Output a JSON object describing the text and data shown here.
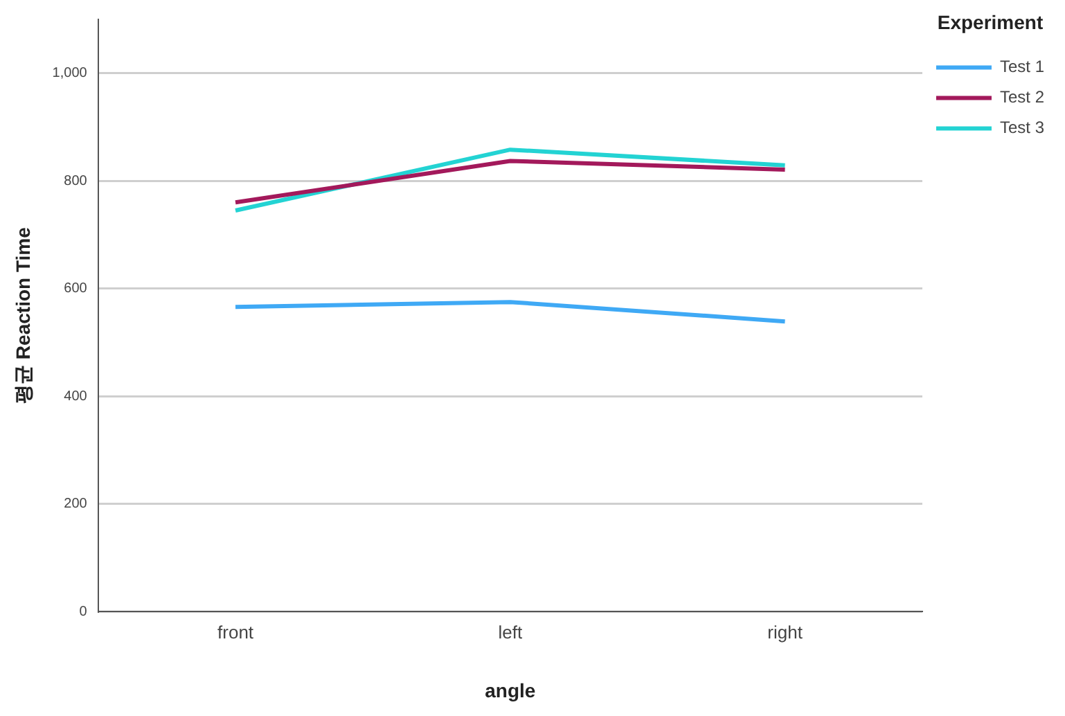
{
  "chart_data": {
    "type": "line",
    "xlabel": "angle",
    "ylabel": "평균 Reaction Time",
    "legend_title": "Experiment",
    "categories": [
      "front",
      "left",
      "right"
    ],
    "series": [
      {
        "name": "Test 1",
        "color": "#3fa9f5",
        "values": [
          566,
          575,
          539
        ]
      },
      {
        "name": "Test 2",
        "color": "#a3195b",
        "values": [
          760,
          837,
          821
        ]
      },
      {
        "name": "Test 3",
        "color": "#23d3d3",
        "values": [
          745,
          858,
          829
        ]
      }
    ],
    "ylim": [
      0,
      1100
    ],
    "yticks": [
      0,
      {
        "value": 200,
        "label": "200"
      },
      {
        "value": 400,
        "label": "400"
      },
      {
        "value": 600,
        "label": "600"
      },
      {
        "value": 800,
        "label": "800"
      },
      {
        "value": 1000,
        "label": "1,000"
      }
    ],
    "grid": "y",
    "legend": "top right",
    "marker": "none",
    "line_style": "solid"
  }
}
